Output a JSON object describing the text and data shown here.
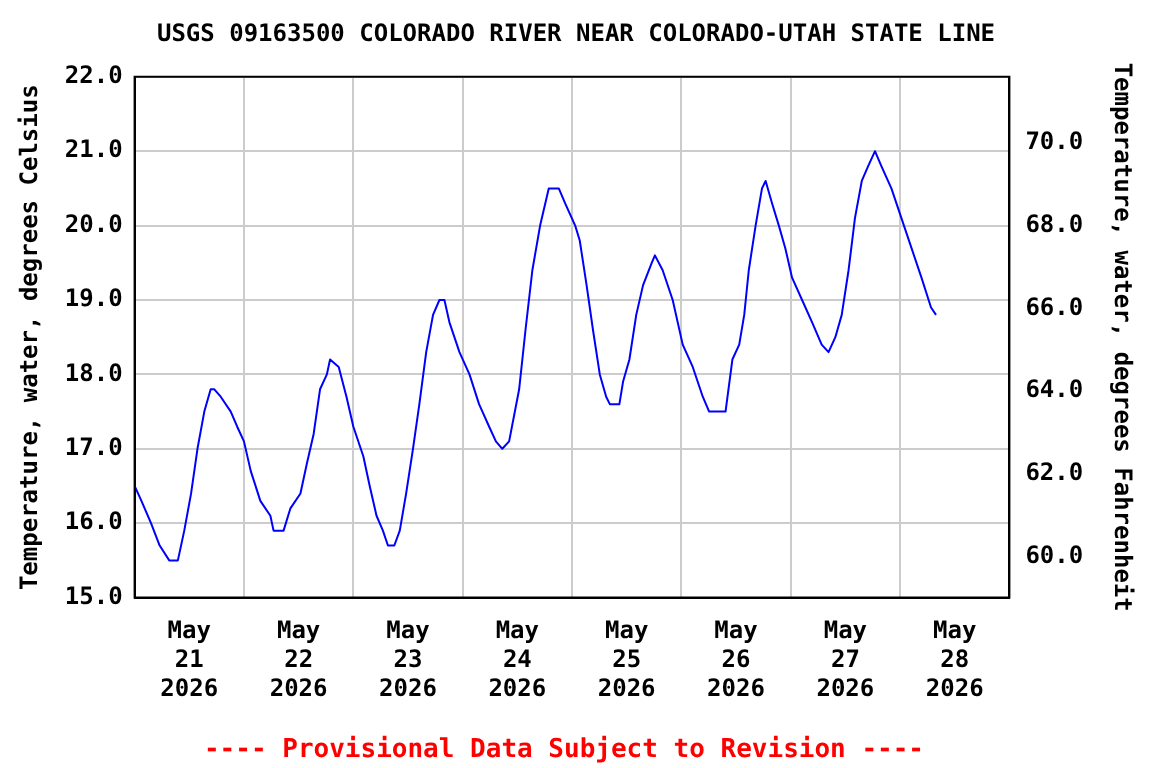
{
  "chart_data": {
    "type": "line",
    "title": "USGS 09163500 COLORADO RIVER NEAR COLORADO-UTAH STATE LINE",
    "ylabel": "Temperature, water, degrees Celsius",
    "y2label": "Temperature, water, degrees Fahrenheit",
    "annotations": [
      "---- Provisional Data Subject to Revision ----"
    ],
    "xlim": [
      "2026-05-21T00:00",
      "2026-05-29T00:00"
    ],
    "xticks": [
      {
        "value": "2026-05-21T12:00",
        "label": "May\n21\n2026"
      },
      {
        "value": "2026-05-22T00:00",
        "label": null
      },
      {
        "value": "2026-05-22T12:00",
        "label": "May\n22\n2026"
      },
      {
        "value": "2026-05-23T00:00",
        "label": null
      },
      {
        "value": "2026-05-23T12:00",
        "label": "May\n23\n2026"
      },
      {
        "value": "2026-05-24T00:00",
        "label": null
      },
      {
        "value": "2026-05-24T12:00",
        "label": "May\n24\n2026"
      },
      {
        "value": "2026-05-25T00:00",
        "label": null
      },
      {
        "value": "2026-05-25T12:00",
        "label": "May\n25\n2026"
      },
      {
        "value": "2026-05-26T00:00",
        "label": null
      },
      {
        "value": "2026-05-26T12:00",
        "label": "May\n26\n2026"
      },
      {
        "value": "2026-05-27T00:00",
        "label": null
      },
      {
        "value": "2026-05-27T12:00",
        "label": "May\n27\n2026"
      },
      {
        "value": "2026-05-28T00:00",
        "label": null
      },
      {
        "value": "2026-05-28T12:00",
        "label": "May\n28\n2026"
      }
    ],
    "ylim": [
      15,
      22
    ],
    "yticks": [
      {
        "value": 15,
        "label": "15.0"
      },
      {
        "value": 16,
        "label": "16.0"
      },
      {
        "value": 17,
        "label": "17.0"
      },
      {
        "value": 18,
        "label": "18.0"
      },
      {
        "value": 19,
        "label": "19.0"
      },
      {
        "value": 20,
        "label": "20.0"
      },
      {
        "value": 21,
        "label": "21.0"
      },
      {
        "value": 22,
        "label": "22.0"
      }
    ],
    "y2lim": [
      59,
      71.6
    ],
    "y2ticks": [
      {
        "value": 60,
        "label": "60.0"
      },
      {
        "value": 62,
        "label": "62.0"
      },
      {
        "value": 64,
        "label": "64.0"
      },
      {
        "value": 66,
        "label": "66.0"
      },
      {
        "value": 68,
        "label": "68.0"
      },
      {
        "value": 70,
        "label": "70.0"
      }
    ],
    "grid": true,
    "marker": "none",
    "line_style": "solid",
    "series": [
      {
        "color": "#0000ff",
        "x": [
          "2026-05-21T00:00",
          "2026-05-21T01:30",
          "2026-05-21T03:36",
          "2026-05-21T05:30",
          "2026-05-21T07:36",
          "2026-05-21T09:30",
          "2026-05-21T10:54",
          "2026-05-21T12:24",
          "2026-05-21T13:48",
          "2026-05-21T15:18",
          "2026-05-21T16:42",
          "2026-05-21T17:30",
          "2026-05-21T18:54",
          "2026-05-21T21:06",
          "2026-05-21T22:30",
          "2026-05-22T00:00",
          "2026-05-22T01:30",
          "2026-05-22T03:36",
          "2026-05-22T05:48",
          "2026-05-22T06:30",
          "2026-05-22T08:42",
          "2026-05-22T10:12",
          "2026-05-22T12:24",
          "2026-05-22T13:48",
          "2026-05-22T15:18",
          "2026-05-22T16:42",
          "2026-05-22T18:12",
          "2026-05-22T18:54",
          "2026-05-22T20:48",
          "2026-05-22T22:30",
          "2026-05-23T00:00",
          "2026-05-23T02:12",
          "2026-05-23T03:36",
          "2026-05-23T05:06",
          "2026-05-23T06:30",
          "2026-05-23T07:36",
          "2026-05-23T09:00",
          "2026-05-23T10:12",
          "2026-05-23T11:36",
          "2026-05-23T13:06",
          "2026-05-23T14:30",
          "2026-05-23T16:00",
          "2026-05-23T17:30",
          "2026-05-23T18:54",
          "2026-05-23T20:00",
          "2026-05-23T21:06",
          "2026-05-23T23:18",
          "2026-05-24T01:30",
          "2026-05-24T03:36",
          "2026-05-24T05:48",
          "2026-05-24T07:18",
          "2026-05-24T08:42",
          "2026-05-24T10:12",
          "2026-05-24T12:24",
          "2026-05-24T13:48",
          "2026-05-24T15:18",
          "2026-05-24T17:00",
          "2026-05-24T18:54",
          "2026-05-24T21:06",
          "2026-05-24T22:30",
          "2026-05-25T00:42",
          "2026-05-25T01:42",
          "2026-05-25T03:12",
          "2026-05-25T04:36",
          "2026-05-25T06:06",
          "2026-05-25T07:30",
          "2026-05-25T08:18",
          "2026-05-25T10:24",
          "2026-05-25T11:12",
          "2026-05-25T12:36",
          "2026-05-25T14:06",
          "2026-05-25T15:36",
          "2026-05-25T17:30",
          "2026-05-25T18:12",
          "2026-05-25T19:54",
          "2026-05-25T22:06",
          "2026-05-26T00:18",
          "2026-05-26T02:30",
          "2026-05-26T04:42",
          "2026-05-26T06:06",
          "2026-05-26T09:42",
          "2026-05-26T11:12",
          "2026-05-26T12:42",
          "2026-05-26T13:48",
          "2026-05-26T14:48",
          "2026-05-26T16:18",
          "2026-05-26T17:42",
          "2026-05-26T18:30",
          "2026-05-26T19:54",
          "2026-05-26T21:24",
          "2026-05-26T22:48",
          "2026-05-27T00:18",
          "2026-05-27T02:30",
          "2026-05-27T04:42",
          "2026-05-27T06:48",
          "2026-05-27T08:18",
          "2026-05-27T09:48",
          "2026-05-27T11:12",
          "2026-05-27T12:42",
          "2026-05-27T14:06",
          "2026-05-27T15:36",
          "2026-05-27T17:00",
          "2026-05-27T18:30",
          "2026-05-27T19:54",
          "2026-05-27T22:06",
          "2026-05-28T00:18",
          "2026-05-28T02:30",
          "2026-05-28T04:42",
          "2026-05-28T06:48",
          "2026-05-28T07:54"
        ],
        "values": [
          16.5,
          16.3,
          16.0,
          15.7,
          15.5,
          15.5,
          15.9,
          16.4,
          17.0,
          17.5,
          17.8,
          17.8,
          17.7,
          17.5,
          17.3,
          17.1,
          16.7,
          16.3,
          16.1,
          15.9,
          15.9,
          16.2,
          16.4,
          16.8,
          17.2,
          17.8,
          18.0,
          18.2,
          18.1,
          17.7,
          17.3,
          16.9,
          16.5,
          16.1,
          15.9,
          15.7,
          15.7,
          15.9,
          16.4,
          17.0,
          17.6,
          18.3,
          18.8,
          19.0,
          19.0,
          18.7,
          18.3,
          18.0,
          17.6,
          17.3,
          17.1,
          17.0,
          17.1,
          17.8,
          18.6,
          19.4,
          20.0,
          20.5,
          20.5,
          20.3,
          20.0,
          19.8,
          19.2,
          18.6,
          18.0,
          17.7,
          17.6,
          17.6,
          17.9,
          18.2,
          18.8,
          19.2,
          19.5,
          19.6,
          19.4,
          19.0,
          18.4,
          18.1,
          17.7,
          17.5,
          17.5,
          18.2,
          18.4,
          18.8,
          19.4,
          20.0,
          20.5,
          20.6,
          20.3,
          20.0,
          19.7,
          19.3,
          19.0,
          18.7,
          18.4,
          18.3,
          18.5,
          18.8,
          19.4,
          20.1,
          20.6,
          20.8,
          21.0,
          20.8,
          20.5,
          20.1,
          19.7,
          19.3,
          18.9,
          18.8
        ]
      }
    ]
  }
}
